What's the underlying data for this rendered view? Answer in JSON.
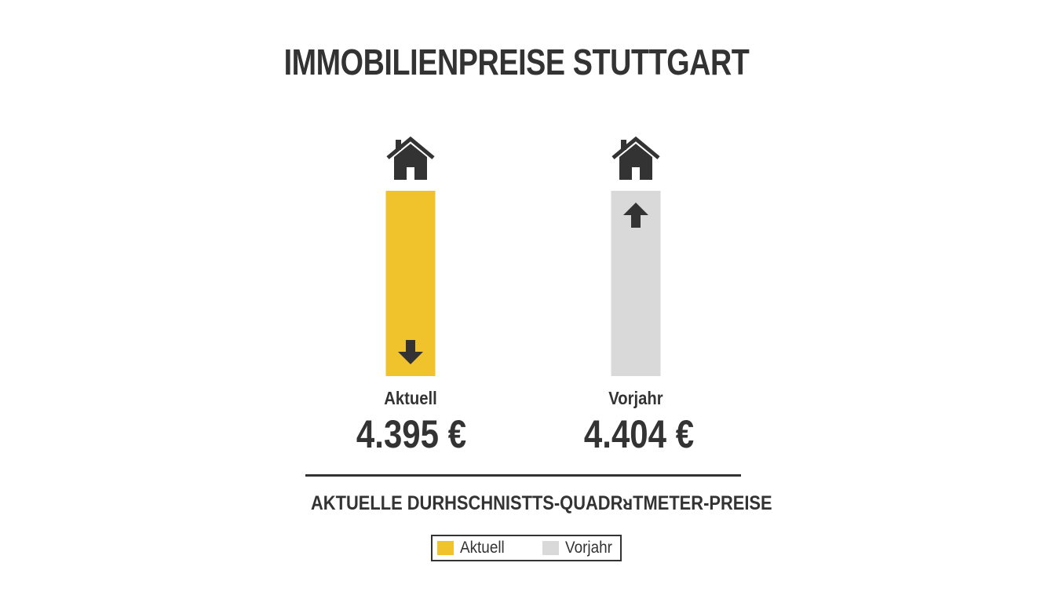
{
  "title": "IMMOBILIENPREISE STUTTGART",
  "subtitle": "AKTUELLE DURHSCHNISTTS-QUADRᴚTMETER-PREISE",
  "chart_data": {
    "type": "bar",
    "title": "IMMOBILIENPREISE STUTTGART",
    "subtitle": "AKTUELLE DURHSCHNISTTS-QUADRᴚTMETER-PREISE",
    "categories": [
      "Aktuell",
      "Vorjahr"
    ],
    "values": [
      4395,
      4404
    ],
    "value_labels": [
      "4.395 €",
      "4.404 €"
    ],
    "colors": [
      "#f0c22b",
      "#d9d9d9"
    ],
    "bar_icons": [
      "house-icon",
      "house-icon"
    ],
    "trend_arrows": [
      "arrow-down-icon",
      "arrow-up-icon"
    ],
    "legend": [
      {
        "label": "Aktuell",
        "color": "#f0c22b"
      },
      {
        "label": "Vorjahr",
        "color": "#d9d9d9"
      }
    ],
    "legend_position": "bottom-center",
    "grid": false,
    "xlabel": "",
    "ylabel": ""
  },
  "colors": {
    "text": "#333333",
    "accent": "#f0c22b",
    "secondary": "#d9d9d9",
    "background": "#ffffff"
  }
}
